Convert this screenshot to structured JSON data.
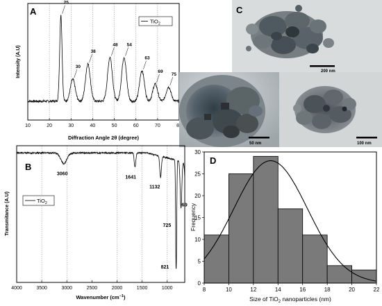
{
  "chart_data": [
    {
      "panel": "A",
      "type": "line",
      "xlabel": "Diffraction Angle 2θ (degree)",
      "ylabel": "Intensity (A.U)",
      "xlim": [
        10,
        80
      ],
      "xticks": [
        10,
        20,
        30,
        40,
        50,
        60,
        70,
        80
      ],
      "gridlines_x": [
        20,
        30,
        40,
        50,
        60,
        70,
        80
      ],
      "legend": {
        "label_main": "TiO",
        "label_sub": "2",
        "placement": "top-right"
      },
      "peaks": [
        {
          "x": 25.3,
          "height": 0.93,
          "label": "25"
        },
        {
          "x": 30.8,
          "height": 0.26,
          "label": "30"
        },
        {
          "x": 37.8,
          "height": 0.42,
          "label": "38"
        },
        {
          "x": 48.0,
          "height": 0.49,
          "label": "48"
        },
        {
          "x": 54.5,
          "height": 0.49,
          "label": "54"
        },
        {
          "x": 62.8,
          "height": 0.35,
          "label": "63"
        },
        {
          "x": 68.9,
          "height": 0.21,
          "label": "69"
        },
        {
          "x": 75.1,
          "height": 0.18,
          "label": "75"
        }
      ]
    },
    {
      "panel": "B",
      "type": "line",
      "xlabel_main": "Wavenumber (cm",
      "xlabel_sup": "−1",
      "xlabel_end": ")",
      "ylabel": "Transmitance (A.U)",
      "xlim": [
        4000,
        650
      ],
      "xticks": [
        4000,
        3500,
        3000,
        2500,
        2000,
        1500,
        1000
      ],
      "gridlines_x": [
        3500,
        3000,
        2000,
        1500,
        1000
      ],
      "legend": {
        "label_main": "TiO",
        "label_sub": "2",
        "placement": "top-left"
      },
      "bands": [
        {
          "x": 3060,
          "depth": 0.09,
          "label": "3060"
        },
        {
          "x": 1641,
          "depth": 0.12,
          "label": "1641"
        },
        {
          "x": 1132,
          "depth": 0.18,
          "label": "1132"
        },
        {
          "x": 725,
          "depth": 0.4,
          "label": "725"
        },
        {
          "x": 630,
          "depth": 0.32,
          "label": "630"
        },
        {
          "x": 821,
          "depth": 0.97,
          "label": "821"
        }
      ]
    },
    {
      "panel": "D",
      "type": "bar",
      "xlabel_main": "Size of TiO",
      "xlabel_sub": "2",
      "xlabel_end": " nanoparticles (nm)",
      "ylabel": "Frequency",
      "xlim": [
        8,
        22
      ],
      "ylim": [
        0,
        30
      ],
      "xticks": [
        8,
        10,
        12,
        14,
        16,
        18,
        20,
        22
      ],
      "yticks": [
        0,
        5,
        10,
        15,
        20,
        25,
        30
      ],
      "bin_edges": [
        8,
        10,
        12,
        14,
        16,
        18,
        20,
        22
      ],
      "values": [
        11,
        25,
        29,
        17,
        11,
        4,
        3
      ],
      "fit": {
        "mean": 13.4,
        "sd": 3.0,
        "peak": 28
      }
    }
  ],
  "tem": {
    "panel_label": "C",
    "scalebars": [
      "200 nm",
      "50 nm",
      "100 nm"
    ]
  },
  "colors": {
    "bar_fill": "#7a7a7a",
    "grid": "#9a9a9a",
    "line": "#000000"
  }
}
